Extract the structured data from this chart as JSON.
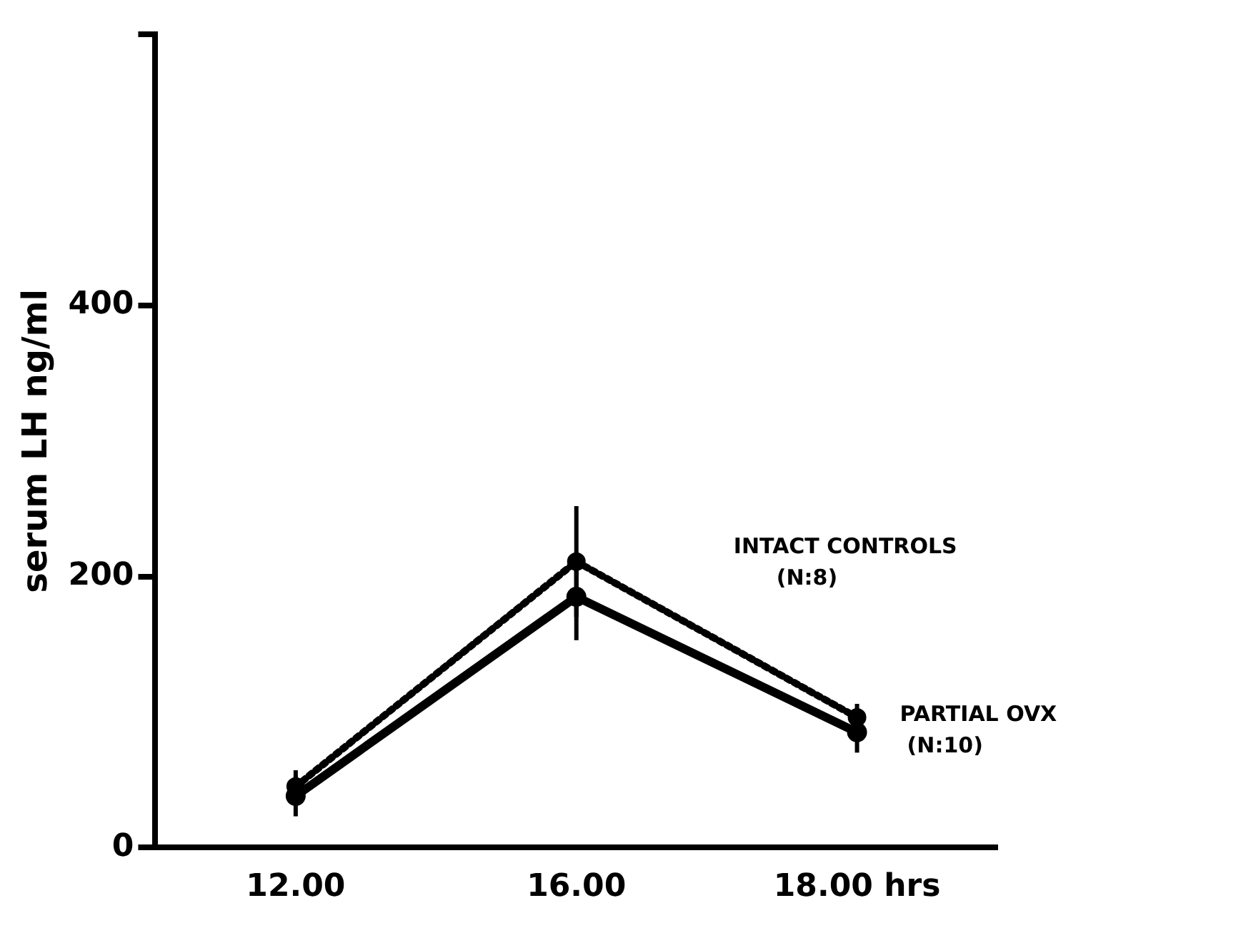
{
  "chart_data": {
    "type": "line",
    "ylabel": "serum LH ng/ml",
    "categories": [
      "12.00",
      "16.00",
      "18.00 hrs"
    ],
    "series": [
      {
        "name": "INTACT CONTROLS (N:8)",
        "color": "#000000",
        "values": [
          45,
          211,
          96
        ],
        "errors": [
          12,
          41,
          10
        ],
        "line_style": "dotted"
      },
      {
        "name": "PARTIAL OVX (N:10)",
        "color": "#000000",
        "values": [
          38,
          185,
          85
        ],
        "errors": [
          15,
          32,
          15
        ],
        "line_style": "solid"
      }
    ],
    "ylim": [
      0,
      600
    ],
    "yticks": [
      0,
      200,
      400,
      {
        "value": 600,
        "label": null
      }
    ],
    "grid": false,
    "legend": false,
    "marker": "circle"
  }
}
